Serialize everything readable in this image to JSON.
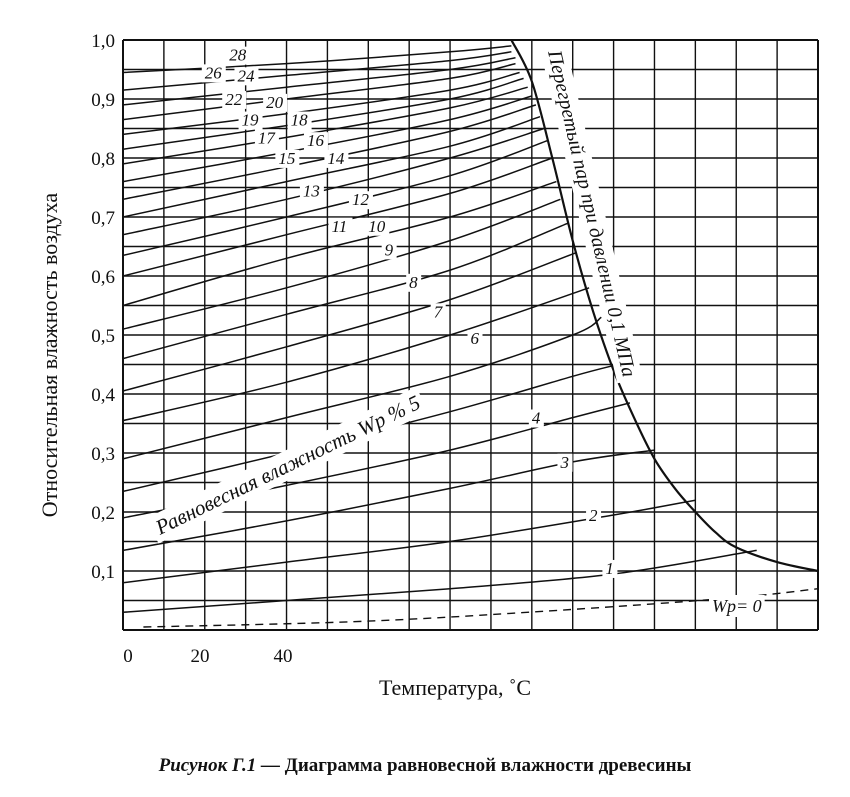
{
  "chart_data": {
    "type": "line",
    "title": "",
    "xlabel": "Температура, ˚С",
    "ylabel": "Относительная влажность воздуха",
    "xlim": [
      0,
      170
    ],
    "ylim": [
      0,
      1.0
    ],
    "x_ticks": [
      "0",
      "20",
      "40"
    ],
    "y_ticks": [
      "0,1",
      "0,2",
      "0,3",
      "0,4",
      "0,5",
      "0,6",
      "0,7",
      "0,8",
      "0,9",
      "1,0"
    ],
    "grid": true,
    "band_label": "Равновесная влажность Wp % 5",
    "boundary_label": "Перегретый пар при давлении 0,1 МПа",
    "zero_label": "Wp= 0",
    "boundary_curve": [
      [
        95,
        1.0
      ],
      [
        100,
        0.93
      ],
      [
        105,
        0.8
      ],
      [
        110,
        0.66
      ],
      [
        115,
        0.54
      ],
      [
        120,
        0.44
      ],
      [
        125,
        0.36
      ],
      [
        130,
        0.29
      ],
      [
        135,
        0.24
      ],
      [
        140,
        0.2
      ],
      [
        145,
        0.165
      ],
      [
        150,
        0.14
      ],
      [
        160,
        0.115
      ],
      [
        170,
        0.1
      ]
    ],
    "series": [
      {
        "name": "1",
        "values": [
          [
            0,
            0.03
          ],
          [
            40,
            0.05
          ],
          [
            80,
            0.07
          ],
          [
            120,
            0.095
          ],
          [
            155,
            0.135
          ]
        ]
      },
      {
        "name": "2",
        "values": [
          [
            0,
            0.08
          ],
          [
            40,
            0.115
          ],
          [
            80,
            0.15
          ],
          [
            120,
            0.195
          ],
          [
            140,
            0.22
          ]
        ]
      },
      {
        "name": "3",
        "values": [
          [
            0,
            0.135
          ],
          [
            40,
            0.185
          ],
          [
            80,
            0.24
          ],
          [
            110,
            0.285
          ],
          [
            130,
            0.305
          ]
        ]
      },
      {
        "name": "4",
        "values": [
          [
            0,
            0.19
          ],
          [
            40,
            0.245
          ],
          [
            80,
            0.305
          ],
          [
            110,
            0.36
          ],
          [
            124,
            0.385
          ]
        ]
      },
      {
        "name": "5",
        "values": [
          [
            0,
            0.235
          ],
          [
            40,
            0.3
          ],
          [
            80,
            0.37
          ],
          [
            110,
            0.43
          ],
          [
            121,
            0.45
          ]
        ]
      },
      {
        "name": "6",
        "values": [
          [
            0,
            0.29
          ],
          [
            40,
            0.36
          ],
          [
            80,
            0.43
          ],
          [
            110,
            0.5
          ],
          [
            117,
            0.53
          ]
        ]
      },
      {
        "name": "7",
        "values": [
          [
            0,
            0.355
          ],
          [
            40,
            0.42
          ],
          [
            80,
            0.5
          ],
          [
            114,
            0.58
          ]
        ]
      },
      {
        "name": "8",
        "values": [
          [
            0,
            0.405
          ],
          [
            40,
            0.48
          ],
          [
            80,
            0.56
          ],
          [
            111,
            0.64
          ]
        ]
      },
      {
        "name": "9",
        "values": [
          [
            0,
            0.46
          ],
          [
            40,
            0.535
          ],
          [
            80,
            0.61
          ],
          [
            109,
            0.69
          ]
        ]
      },
      {
        "name": "10",
        "values": [
          [
            0,
            0.51
          ],
          [
            40,
            0.58
          ],
          [
            80,
            0.66
          ],
          [
            107,
            0.73
          ]
        ]
      },
      {
        "name": "11",
        "values": [
          [
            0,
            0.55
          ],
          [
            40,
            0.63
          ],
          [
            80,
            0.7
          ],
          [
            106,
            0.76
          ]
        ]
      },
      {
        "name": "12",
        "values": [
          [
            0,
            0.6
          ],
          [
            40,
            0.67
          ],
          [
            80,
            0.74
          ],
          [
            105,
            0.8
          ]
        ]
      },
      {
        "name": "13",
        "values": [
          [
            0,
            0.635
          ],
          [
            40,
            0.7
          ],
          [
            80,
            0.77
          ],
          [
            104,
            0.83
          ]
        ]
      },
      {
        "name": "14",
        "values": [
          [
            0,
            0.67
          ],
          [
            40,
            0.73
          ],
          [
            80,
            0.8
          ],
          [
            103,
            0.85
          ]
        ]
      },
      {
        "name": "15",
        "values": [
          [
            0,
            0.7
          ],
          [
            40,
            0.76
          ],
          [
            80,
            0.82
          ],
          [
            102,
            0.87
          ]
        ]
      },
      {
        "name": "16",
        "values": [
          [
            0,
            0.73
          ],
          [
            40,
            0.785
          ],
          [
            80,
            0.845
          ],
          [
            101,
            0.89
          ]
        ]
      },
      {
        "name": "17",
        "values": [
          [
            0,
            0.76
          ],
          [
            40,
            0.81
          ],
          [
            80,
            0.865
          ],
          [
            100,
            0.905
          ]
        ]
      },
      {
        "name": "18",
        "values": [
          [
            0,
            0.79
          ],
          [
            40,
            0.835
          ],
          [
            80,
            0.885
          ],
          [
            99,
            0.92
          ]
        ]
      },
      {
        "name": "19",
        "values": [
          [
            0,
            0.815
          ],
          [
            40,
            0.855
          ],
          [
            80,
            0.9
          ],
          [
            98,
            0.935
          ]
        ]
      },
      {
        "name": "20",
        "values": [
          [
            0,
            0.84
          ],
          [
            40,
            0.875
          ],
          [
            80,
            0.915
          ],
          [
            97,
            0.945
          ]
        ]
      },
      {
        "name": "22",
        "values": [
          [
            0,
            0.865
          ],
          [
            40,
            0.9
          ],
          [
            80,
            0.935
          ],
          [
            96,
            0.96
          ]
        ]
      },
      {
        "name": "24",
        "values": [
          [
            0,
            0.89
          ],
          [
            40,
            0.92
          ],
          [
            80,
            0.95
          ],
          [
            96,
            0.97
          ]
        ]
      },
      {
        "name": "26",
        "values": [
          [
            0,
            0.915
          ],
          [
            40,
            0.94
          ],
          [
            80,
            0.965
          ],
          [
            95,
            0.98
          ]
        ]
      },
      {
        "name": "28",
        "values": [
          [
            0,
            0.945
          ],
          [
            40,
            0.96
          ],
          [
            80,
            0.98
          ],
          [
            95,
            0.99
          ]
        ]
      }
    ],
    "label_positions": [
      {
        "text": "1",
        "x": 118,
        "y": 0.095
      },
      {
        "text": "2",
        "x": 114,
        "y": 0.185
      },
      {
        "text": "3",
        "x": 107,
        "y": 0.275
      },
      {
        "text": "4",
        "x": 100,
        "y": 0.35
      },
      {
        "text": "6",
        "x": 85,
        "y": 0.485
      },
      {
        "text": "7",
        "x": 76,
        "y": 0.53
      },
      {
        "text": "8",
        "x": 70,
        "y": 0.58
      },
      {
        "text": "9",
        "x": 64,
        "y": 0.635
      },
      {
        "text": "10",
        "x": 60,
        "y": 0.675
      },
      {
        "text": "11",
        "x": 51,
        "y": 0.675
      },
      {
        "text": "12",
        "x": 56,
        "y": 0.72
      },
      {
        "text": "13",
        "x": 44,
        "y": 0.735
      },
      {
        "text": "14",
        "x": 50,
        "y": 0.79
      },
      {
        "text": "15",
        "x": 38,
        "y": 0.79
      },
      {
        "text": "16",
        "x": 45,
        "y": 0.82
      },
      {
        "text": "17",
        "x": 33,
        "y": 0.825
      },
      {
        "text": "18",
        "x": 41,
        "y": 0.855
      },
      {
        "text": "19",
        "x": 29,
        "y": 0.855
      },
      {
        "text": "20",
        "x": 35,
        "y": 0.885
      },
      {
        "text": "22",
        "x": 25,
        "y": 0.89
      },
      {
        "text": "24",
        "x": 28,
        "y": 0.93
      },
      {
        "text": "26",
        "x": 20,
        "y": 0.935
      },
      {
        "text": "28",
        "x": 26,
        "y": 0.965
      }
    ]
  },
  "caption": {
    "number": "Рисунок Г.1 —",
    "text": "Диаграмма равновесной влажности древесины"
  }
}
